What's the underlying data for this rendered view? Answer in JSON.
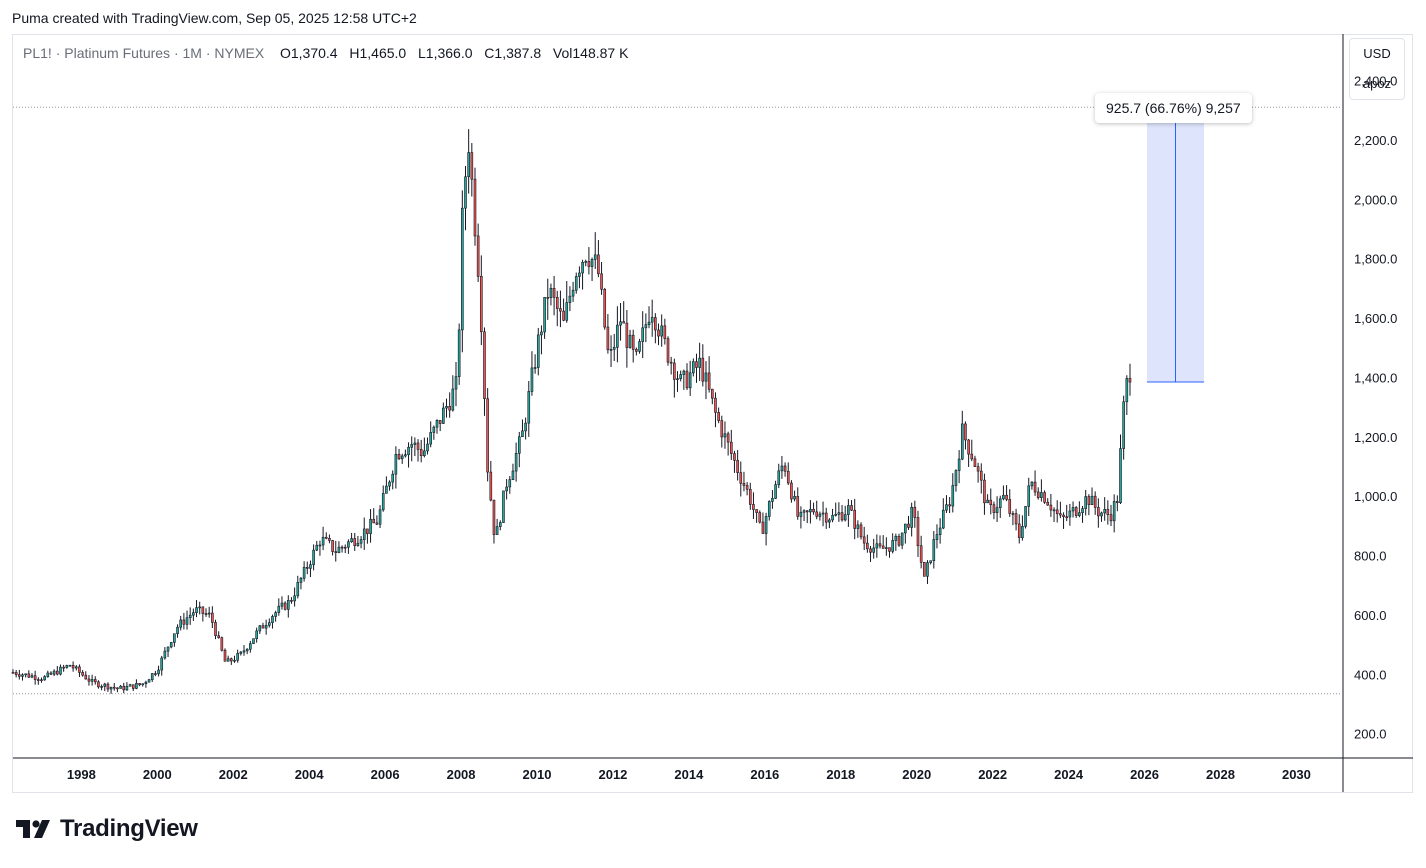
{
  "header": {
    "caption": "Puma created with TradingView.com, Sep 05, 2025 12:58 UTC+2"
  },
  "legend": {
    "symbol": "PL1! · Platinum Futures · 1M · NYMEX",
    "open_label": "O",
    "open": "1,370.4",
    "high_label": "H",
    "high": "1,465.0",
    "low_label": "L",
    "low": "1,366.0",
    "close_label": "C",
    "close": "1,387.8",
    "vol_label": "Vol",
    "vol": "148.87 K"
  },
  "scale_badge": {
    "currency": "USD",
    "unit": "apoz"
  },
  "measure": {
    "label": "925.7 (66.76%) 9,257",
    "from": 1387.8,
    "to": 2313.5
  },
  "logo": {
    "text": "TradingView",
    "icon": "tradingview-logo-icon"
  },
  "colors": {
    "up": "#26a69a",
    "down": "#ef5350",
    "wick": "#131722",
    "measure_fill": "#dde4fc",
    "measure_line": "#2962ff"
  },
  "chart_data": {
    "type": "candlestick",
    "symbol": "PL1!",
    "interval": "1M",
    "y_ticks": [
      "200.0",
      "400.0",
      "600.0",
      "800.0",
      "1,000.0",
      "1,200.0",
      "1,400.0",
      "1,600.0",
      "1,800.0",
      "2,000.0",
      "2,200.0",
      "2,400.0"
    ],
    "y_tick_values": [
      200,
      400,
      600,
      800,
      1000,
      1200,
      1400,
      1600,
      1800,
      2000,
      2200,
      2400
    ],
    "x_ticks": [
      "1998",
      "2000",
      "2002",
      "2004",
      "2006",
      "2008",
      "2010",
      "2012",
      "2014",
      "2016",
      "2018",
      "2020",
      "2022",
      "2024",
      "2026",
      "2028",
      "2030"
    ],
    "x_tick_values": [
      1998,
      2000,
      2002,
      2004,
      2006,
      2008,
      2010,
      2012,
      2014,
      2016,
      2018,
      2020,
      2022,
      2024,
      2026,
      2028,
      2030
    ],
    "xlim": [
      1996.2,
      2031.2
    ],
    "ylim": [
      125,
      2560
    ],
    "hlines": [
      2313.5,
      338
    ],
    "series_points": [
      [
        1996.2,
        410
      ],
      [
        1997.0,
        390
      ],
      [
        1997.7,
        435
      ],
      [
        1998.3,
        375
      ],
      [
        1999.0,
        355
      ],
      [
        1999.6,
        370
      ],
      [
        2000.0,
        420
      ],
      [
        2000.5,
        560
      ],
      [
        2001.0,
        620
      ],
      [
        2001.4,
        600
      ],
      [
        2001.8,
        440
      ],
      [
        2002.2,
        470
      ],
      [
        2002.6,
        540
      ],
      [
        2003.0,
        600
      ],
      [
        2003.5,
        650
      ],
      [
        2004.0,
        780
      ],
      [
        2004.3,
        860
      ],
      [
        2004.7,
        820
      ],
      [
        2005.2,
        860
      ],
      [
        2005.8,
        920
      ],
      [
        2006.3,
        1150
      ],
      [
        2006.7,
        1180
      ],
      [
        2007.0,
        1150
      ],
      [
        2007.4,
        1250
      ],
      [
        2007.9,
        1380
      ],
      [
        2008.05,
        2000
      ],
      [
        2008.2,
        2200
      ],
      [
        2008.5,
        1700
      ],
      [
        2008.7,
        1100
      ],
      [
        2008.9,
        850
      ],
      [
        2009.2,
        1050
      ],
      [
        2009.6,
        1200
      ],
      [
        2010.0,
        1500
      ],
      [
        2010.3,
        1700
      ],
      [
        2010.7,
        1580
      ],
      [
        2011.0,
        1760
      ],
      [
        2011.3,
        1830
      ],
      [
        2011.6,
        1770
      ],
      [
        2011.9,
        1450
      ],
      [
        2012.2,
        1600
      ],
      [
        2012.6,
        1450
      ],
      [
        2013.0,
        1650
      ],
      [
        2013.4,
        1500
      ],
      [
        2013.8,
        1380
      ],
      [
        2014.3,
        1450
      ],
      [
        2014.7,
        1280
      ],
      [
        2015.2,
        1120
      ],
      [
        2015.6,
        1000
      ],
      [
        2015.9,
        880
      ],
      [
        2016.3,
        1050
      ],
      [
        2016.5,
        1120
      ],
      [
        2016.9,
        920
      ],
      [
        2017.3,
        960
      ],
      [
        2017.8,
        930
      ],
      [
        2018.2,
        960
      ],
      [
        2018.6,
        850
      ],
      [
        2019.0,
        820
      ],
      [
        2019.5,
        850
      ],
      [
        2019.9,
        950
      ],
      [
        2020.2,
        720
      ],
      [
        2020.5,
        870
      ],
      [
        2020.9,
        1000
      ],
      [
        2021.2,
        1220
      ],
      [
        2021.5,
        1130
      ],
      [
        2021.9,
        950
      ],
      [
        2022.3,
        1000
      ],
      [
        2022.7,
        870
      ],
      [
        2023.0,
        1050
      ],
      [
        2023.4,
        1000
      ],
      [
        2023.8,
        920
      ],
      [
        2024.2,
        960
      ],
      [
        2024.5,
        1000
      ],
      [
        2024.8,
        950
      ],
      [
        2025.1,
        940
      ],
      [
        2025.3,
        1000
      ],
      [
        2025.4,
        1220
      ],
      [
        2025.5,
        1380
      ],
      [
        2025.65,
        1387.8
      ]
    ]
  }
}
